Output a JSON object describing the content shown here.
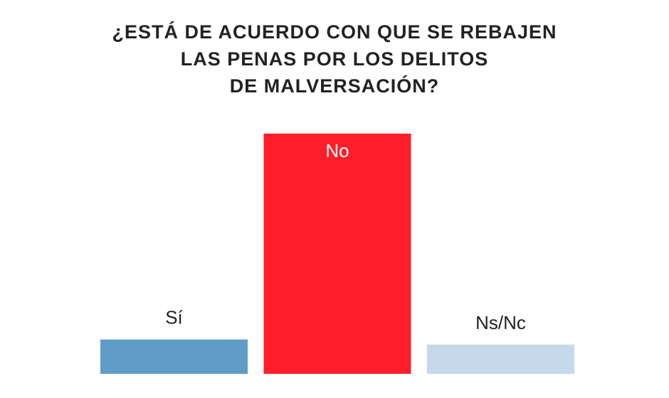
{
  "title_lines": [
    "¿ESTÁ DE ACUERDO CON QUE SE REBAJEN",
    "LAS PENAS POR LOS DELITOS",
    "DE MALVERSACIÓN?"
  ],
  "chart_data": {
    "type": "bar",
    "title": "¿ESTÁ DE ACUERDO CON QUE SE REBAJEN LAS PENAS POR LOS DELITOS DE MALVERSACIÓN?",
    "categories": [
      "Sí",
      "No",
      "Ns/Nc"
    ],
    "values": [
      14.3,
      100,
      12.2
    ],
    "value_unit": "relative to the tallest bar (no figures printed)",
    "colors": [
      "#5f9cc7",
      "#ff1e29",
      "#c5d9eb"
    ],
    "label_placement": [
      "above",
      "inside",
      "above"
    ],
    "label_colors": [
      "#222222",
      "#ffffff",
      "#222222"
    ],
    "ylim": [
      0,
      100
    ],
    "grid": false,
    "legend": "none"
  }
}
